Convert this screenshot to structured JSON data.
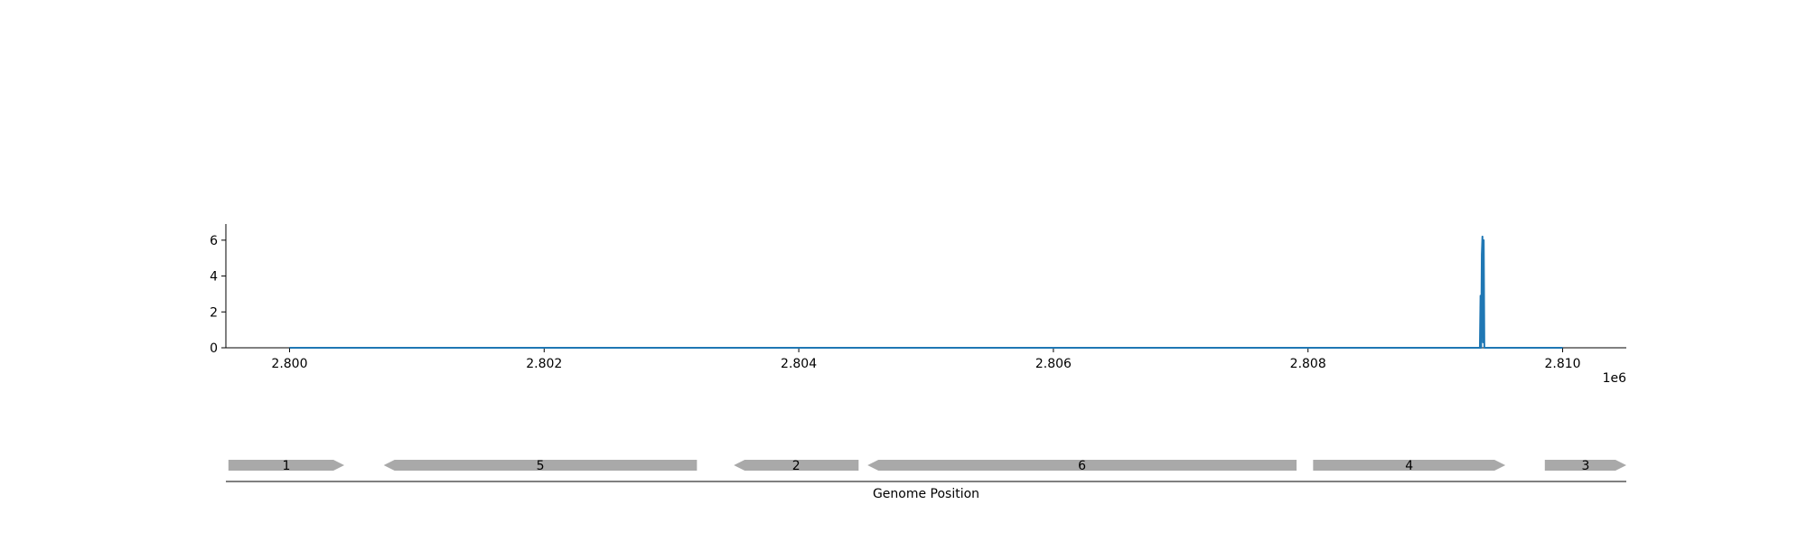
{
  "chart_data": [
    {
      "type": "line",
      "title": "",
      "xlabel": "",
      "ylabel": "",
      "xlim": [
        2799500,
        2810500
      ],
      "ylim": [
        0,
        6.9
      ],
      "x_offset_label": "1e6",
      "x_ticks": [
        2.8,
        2.802,
        2.804,
        2.806,
        2.808,
        2.81
      ],
      "x_tick_labels": [
        "2.800",
        "2.802",
        "2.804",
        "2.806",
        "2.808",
        "2.810"
      ],
      "y_ticks": [
        0,
        2,
        4,
        6
      ],
      "y_tick_labels": [
        "0",
        "2",
        "4",
        "6"
      ],
      "grid": false,
      "line_color": "#1f77b4",
      "series": [
        {
          "x": [
            2800000,
            2809350,
            2809355,
            2809360,
            2809365,
            2809370,
            2809375,
            2809380,
            2809385,
            2810000
          ],
          "values": [
            0,
            0,
            2.9,
            0,
            5.2,
            6.2,
            0.3,
            6.0,
            0,
            0
          ]
        }
      ]
    },
    {
      "type": "gene_track",
      "xlabel": "Genome Position",
      "feature_color": "#a9a9a9",
      "features": [
        {
          "label": "1",
          "start": 2799520,
          "end": 2800430,
          "strand": "+"
        },
        {
          "label": "5",
          "start": 2800740,
          "end": 2803200,
          "strand": "-"
        },
        {
          "label": "2",
          "start": 2803490,
          "end": 2804470,
          "strand": "-"
        },
        {
          "label": "6",
          "start": 2804540,
          "end": 2807910,
          "strand": "-"
        },
        {
          "label": "4",
          "start": 2808040,
          "end": 2809550,
          "strand": "+"
        },
        {
          "label": "3",
          "start": 2809860,
          "end": 2810500,
          "strand": "+"
        }
      ]
    }
  ]
}
